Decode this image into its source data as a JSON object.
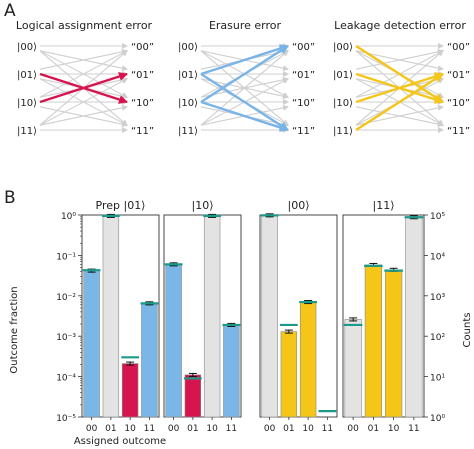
{
  "panel_a": {
    "label": "A",
    "states": [
      "|00⟩",
      "|01⟩",
      "|10⟩",
      "|11⟩"
    ],
    "outcomes": [
      "“00”",
      "“01”",
      "“10”",
      "“11”"
    ],
    "diagrams": [
      {
        "title": "Logical assignment error",
        "highlight_color": "#d6154f",
        "arrows": [
          [
            1,
            2
          ],
          [
            2,
            1
          ]
        ]
      },
      {
        "title": "Erasure error",
        "highlight_color": "#78b4e8",
        "arrows": [
          [
            1,
            0
          ],
          [
            2,
            0
          ],
          [
            2,
            3
          ],
          [
            1,
            3
          ]
        ]
      },
      {
        "title": "Leakage detection error",
        "highlight_color": "#f5c518",
        "arrows": [
          [
            0,
            2
          ],
          [
            3,
            1
          ],
          [
            1,
            2
          ],
          [
            2,
            1
          ]
        ]
      }
    ]
  },
  "panel_b": {
    "label": "B",
    "ylabel_left": "Outcome fraction",
    "ylabel_right": "Counts",
    "xlabel": "Assigned outcome",
    "left_ticks": [
      "10⁰",
      "10⁻¹",
      "10⁻²",
      "10⁻³",
      "10⁻⁴",
      "10⁻⁵"
    ],
    "right_ticks": [
      "10⁵",
      "10⁴",
      "10³",
      "10²",
      "10¹",
      "10⁰"
    ]
  },
  "chart_data": [
    {
      "type": "bar",
      "title": "Prep |01⟩",
      "categories": [
        "00",
        "01",
        "10",
        "11"
      ],
      "bar_colors": [
        "#7ab6e6",
        "#e3e3e3",
        "#d6154f",
        "#7ab6e6"
      ],
      "values": [
        0.042,
        0.95,
        0.00021,
        0.0065
      ],
      "expected": [
        0.043,
        0.95,
        0.0003,
        0.0065
      ],
      "ylim": [
        1e-05,
        1
      ],
      "log_scale": true
    },
    {
      "type": "bar",
      "title": "|10⟩",
      "categories": [
        "00",
        "01",
        "10",
        "11"
      ],
      "bar_colors": [
        "#7ab6e6",
        "#d6154f",
        "#e3e3e3",
        "#7ab6e6"
      ],
      "values": [
        0.06,
        0.00011,
        0.95,
        0.0019
      ],
      "expected": [
        0.06,
        9e-05,
        0.95,
        0.0019
      ],
      "ylim": [
        1e-05,
        1
      ],
      "log_scale": true
    },
    {
      "type": "bar",
      "title": "|00⟩",
      "categories": [
        "00",
        "01",
        "10",
        "11"
      ],
      "bar_colors": [
        "#e3e3e3",
        "#f5c518",
        "#f5c518",
        "#e3e3e3"
      ],
      "values": [
        0.98,
        0.0013,
        0.007,
        null
      ],
      "expected": [
        0.98,
        0.0019,
        0.007,
        1.4e-05
      ],
      "ylim": [
        1e-05,
        1
      ],
      "log_scale": true
    },
    {
      "type": "bar",
      "title": "|11⟩",
      "categories": [
        "00",
        "01",
        "10",
        "11"
      ],
      "bar_colors": [
        "#e3e3e3",
        "#f5c518",
        "#f5c518",
        "#e3e3e3"
      ],
      "values": [
        0.0026,
        0.058,
        0.044,
        0.88
      ],
      "expected": [
        0.0019,
        0.055,
        0.042,
        0.88
      ],
      "ylim": [
        1e-05,
        1
      ],
      "log_scale": true
    }
  ],
  "colors": {
    "grey_arrow": "#cfcfcf",
    "expected_marker": "#1b9a8a",
    "bar_edge": "#8a8a8a"
  }
}
